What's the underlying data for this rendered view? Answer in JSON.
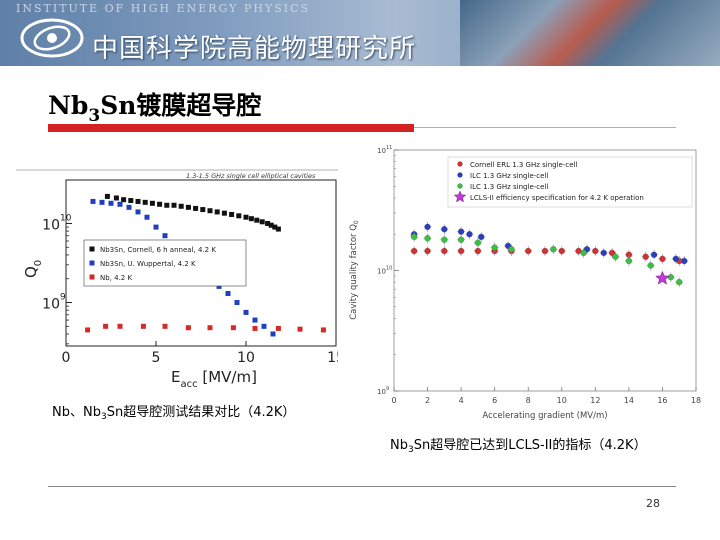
{
  "header": {
    "institute_en": "INSTITUTE OF HIGH ENERGY PHYSICS",
    "institute_cn": "中国科学院高能物理研究所",
    "logo_icon": "ihep-logo-icon"
  },
  "slide": {
    "title_prefix": "Nb",
    "title_sub": "3",
    "title_suffix": "Sn镀膜超导腔",
    "caption_left": {
      "prefix": "Nb、Nb",
      "sub": "3",
      "suffix": "Sn超导腔测试结果对比（4.2K）"
    },
    "caption_right": {
      "prefix": "Nb",
      "sub": "3",
      "suffix": "Sn超导腔已达到LCLS-II的指标（4.2K）"
    },
    "page_number": "28",
    "accent_color": "#d32124"
  },
  "chart_data": [
    {
      "type": "scatter",
      "title": "1.3-1.5 GHz single cell elliptical cavities",
      "xlabel": "E",
      "xlabel_sub": "acc",
      "xlabel_unit": " [MV/m]",
      "ylabel": "Q",
      "ylabel_sub": "0",
      "xlim": [
        0,
        15
      ],
      "ylim_log10": [
        8.45,
        10.55
      ],
      "x_ticks": [
        "0",
        "5",
        "10",
        "15"
      ],
      "x_tick_values": [
        0,
        5,
        10,
        15
      ],
      "y_ticks": [
        {
          "base": "10",
          "exp": "9",
          "value": 9
        },
        {
          "base": "10",
          "exp": "10",
          "value": 10
        }
      ],
      "legend_position": "center-right",
      "series": [
        {
          "name": "Nb3Sn, Cornell, 6 h anneal, 4.2 K",
          "color": "#111111",
          "marker": "square",
          "x": [
            2.3,
            2.8,
            3.2,
            3.6,
            4.0,
            4.4,
            4.8,
            5.2,
            5.6,
            6.0,
            6.4,
            6.8,
            7.2,
            7.6,
            8.0,
            8.4,
            8.8,
            9.2,
            9.6,
            10.0,
            10.3,
            10.6,
            10.9,
            11.2,
            11.4,
            11.6,
            11.8
          ],
          "y": [
            22000000000.0,
            21000000000.0,
            20000000000.0,
            19500000000.0,
            19000000000.0,
            18500000000.0,
            18000000000.0,
            17500000000.0,
            17000000000.0,
            17000000000.0,
            16500000000.0,
            16000000000.0,
            15500000000.0,
            15000000000.0,
            14500000000.0,
            14000000000.0,
            13500000000.0,
            13000000000.0,
            12500000000.0,
            12000000000.0,
            11500000000.0,
            11000000000.0,
            10500000000.0,
            10000000000.0,
            9500000000.0,
            9000000000.0,
            8500000000.0
          ]
        },
        {
          "name": "Nb3Sn, U. Wuppertal, 4.2 K",
          "color": "#1f3fbf",
          "marker": "square",
          "x": [
            1.5,
            2.0,
            2.5,
            3.0,
            3.5,
            4.0,
            4.5,
            5.0,
            5.5,
            6.0,
            6.5,
            7.0,
            7.5,
            8.0,
            8.5,
            9.0,
            9.5,
            10.0,
            10.5,
            11.0,
            11.5
          ],
          "y": [
            19000000000.0,
            18500000000.0,
            18000000000.0,
            17500000000.0,
            16000000000.0,
            14000000000.0,
            12000000000.0,
            9000000000.0,
            7000000000.0,
            5000000000.0,
            4000000000.0,
            3200000000.0,
            2500000000.0,
            2000000000.0,
            1600000000.0,
            1300000000.0,
            1000000000.0,
            750000000.0,
            600000000.0,
            500000000.0,
            400000000.0
          ]
        },
        {
          "name": "Nb, 4.2 K",
          "color": "#d42a2a",
          "marker": "square",
          "x": [
            1.2,
            2.2,
            3.0,
            4.3,
            5.5,
            6.8,
            8.0,
            9.3,
            10.5,
            11.8,
            13.0,
            14.3
          ],
          "y": [
            450000000.0,
            500000000.0,
            500000000.0,
            500000000.0,
            500000000.0,
            480000000.0,
            480000000.0,
            480000000.0,
            470000000.0,
            470000000.0,
            460000000.0,
            450000000.0
          ]
        }
      ]
    },
    {
      "type": "scatter",
      "title": "",
      "xlabel": "Accelerating gradient (MV/m)",
      "ylabel": "Cavity quality factor Q",
      "ylabel_sub": "0",
      "xlim": [
        0,
        18
      ],
      "ylim_log10": [
        9,
        11
      ],
      "x_ticks": [
        "0",
        "2",
        "4",
        "6",
        "8",
        "10",
        "12",
        "14",
        "16",
        "18"
      ],
      "x_tick_values": [
        0,
        2,
        4,
        6,
        8,
        10,
        12,
        14,
        16,
        18
      ],
      "y_ticks": [
        {
          "base": "10",
          "exp": "9",
          "value": 9
        },
        {
          "base": "10",
          "exp": "10",
          "value": 10
        },
        {
          "base": "10",
          "exp": "11",
          "value": 11
        }
      ],
      "legend_position": "top-right",
      "series": [
        {
          "name": "Cornell ERL 1.3 GHz single-cell",
          "color": "#d43030",
          "marker": "circle",
          "x": [
            1.2,
            2.0,
            3.0,
            4.0,
            5.0,
            6.0,
            7.0,
            8.0,
            9.0,
            10.0,
            11.0,
            12.0,
            13.0,
            14.0,
            15.0,
            16.0,
            17.0
          ],
          "y": [
            14500000000.0,
            14500000000.0,
            14500000000.0,
            14500000000.0,
            14500000000.0,
            14500000000.0,
            14500000000.0,
            14500000000.0,
            14500000000.0,
            14500000000.0,
            14500000000.0,
            14500000000.0,
            14000000000.0,
            13500000000.0,
            13000000000.0,
            12500000000.0,
            12000000000.0
          ]
        },
        {
          "name": "ILC 1.3 GHz single-cell",
          "color": "#2a3fc0",
          "marker": "circle",
          "x": [
            1.2,
            2.0,
            3.0,
            4.0,
            4.5,
            5.2,
            6.8,
            11.5,
            12.5,
            15.5,
            16.8,
            17.3
          ],
          "y": [
            20000000000.0,
            23000000000.0,
            22000000000.0,
            21000000000.0,
            20000000000.0,
            19000000000.0,
            16000000000.0,
            15000000000.0,
            14000000000.0,
            13500000000.0,
            12500000000.0,
            12000000000.0
          ]
        },
        {
          "name": "ILC 1.3 GHz single-cell",
          "color": "#3cc040",
          "marker": "circle",
          "x": [
            1.2,
            2.0,
            3.0,
            4.0,
            5.0,
            6.0,
            7.0,
            9.5,
            11.3,
            13.2,
            14.0,
            15.3,
            16.5,
            17.0
          ],
          "y": [
            19000000000.0,
            18500000000.0,
            18000000000.0,
            18000000000.0,
            17000000000.0,
            15500000000.0,
            15000000000.0,
            15000000000.0,
            14000000000.0,
            13000000000.0,
            12000000000.0,
            11000000000.0,
            8800000000.0,
            8000000000.0
          ]
        },
        {
          "name": "LCLS-II efficiency specification for 4.2 K operation",
          "color": "#c23ad6",
          "marker": "star",
          "x": [
            16.0
          ],
          "y": [
            8600000000.0
          ]
        }
      ]
    }
  ]
}
